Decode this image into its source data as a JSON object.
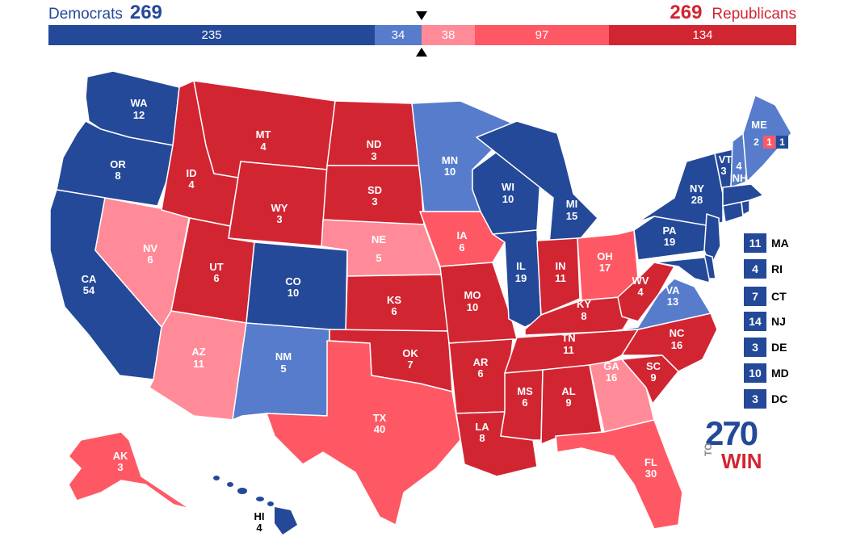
{
  "header": {
    "dem_name": "Democrats",
    "dem_total": "269",
    "rep_total": "269",
    "rep_name": "Republicans"
  },
  "bar": [
    {
      "value": "235",
      "color": "#244999"
    },
    {
      "value": "34",
      "color": "#577ccc"
    },
    {
      "value": "38",
      "color": "#ff8b98"
    },
    {
      "value": "97",
      "color": "#ff5865"
    },
    {
      "value": "134",
      "color": "#d22532"
    }
  ],
  "colors": {
    "safe_dem": "#244999",
    "likely_dem": "#577ccc",
    "tossup_lean_rep": "#ff8b98",
    "likely_rep": "#ff5865",
    "safe_rep": "#d22532"
  },
  "states": {
    "WA": {
      "abbr": "WA",
      "ev": "12"
    },
    "OR": {
      "abbr": "OR",
      "ev": "8"
    },
    "CA": {
      "abbr": "CA",
      "ev": "54"
    },
    "NV": {
      "abbr": "NV",
      "ev": "6"
    },
    "ID": {
      "abbr": "ID",
      "ev": "4"
    },
    "MT": {
      "abbr": "MT",
      "ev": "4"
    },
    "WY": {
      "abbr": "WY",
      "ev": "3"
    },
    "UT": {
      "abbr": "UT",
      "ev": "6"
    },
    "AZ": {
      "abbr": "AZ",
      "ev": "11"
    },
    "CO": {
      "abbr": "CO",
      "ev": "10"
    },
    "NM": {
      "abbr": "NM",
      "ev": "5"
    },
    "ND": {
      "abbr": "ND",
      "ev": "3"
    },
    "SD": {
      "abbr": "SD",
      "ev": "3"
    },
    "NE": {
      "abbr": "NE",
      "ev": "5"
    },
    "KS": {
      "abbr": "KS",
      "ev": "6"
    },
    "OK": {
      "abbr": "OK",
      "ev": "7"
    },
    "TX": {
      "abbr": "TX",
      "ev": "40"
    },
    "MN": {
      "abbr": "MN",
      "ev": "10"
    },
    "IA": {
      "abbr": "IA",
      "ev": "6"
    },
    "MO": {
      "abbr": "MO",
      "ev": "10"
    },
    "AR": {
      "abbr": "AR",
      "ev": "6"
    },
    "LA": {
      "abbr": "LA",
      "ev": "8"
    },
    "WI": {
      "abbr": "WI",
      "ev": "10"
    },
    "IL": {
      "abbr": "IL",
      "ev": "19"
    },
    "MI": {
      "abbr": "MI",
      "ev": "15"
    },
    "IN": {
      "abbr": "IN",
      "ev": "11"
    },
    "OH": {
      "abbr": "OH",
      "ev": "17"
    },
    "KY": {
      "abbr": "KY",
      "ev": "8"
    },
    "TN": {
      "abbr": "TN",
      "ev": "11"
    },
    "MS": {
      "abbr": "MS",
      "ev": "6"
    },
    "AL": {
      "abbr": "AL",
      "ev": "9"
    },
    "GA": {
      "abbr": "GA",
      "ev": "16"
    },
    "FL": {
      "abbr": "FL",
      "ev": "30"
    },
    "SC": {
      "abbr": "SC",
      "ev": "9"
    },
    "NC": {
      "abbr": "NC",
      "ev": "16"
    },
    "VA": {
      "abbr": "VA",
      "ev": "13"
    },
    "WV": {
      "abbr": "WV",
      "ev": "4"
    },
    "PA": {
      "abbr": "PA",
      "ev": "19"
    },
    "NY": {
      "abbr": "NY",
      "ev": "28"
    },
    "VT": {
      "abbr": "VT",
      "ev": "3"
    },
    "NH": {
      "abbr": "NH",
      "ev": "4"
    },
    "ME": {
      "abbr": "ME",
      "ev_1": "2",
      "ev_2": "1",
      "ev_3": "1"
    },
    "AK": {
      "abbr": "AK",
      "ev": "3"
    },
    "HI": {
      "abbr": "HI",
      "ev": "4"
    }
  },
  "small_states": [
    {
      "ev": "11",
      "abbr": "MA"
    },
    {
      "ev": "4",
      "abbr": "RI"
    },
    {
      "ev": "7",
      "abbr": "CT"
    },
    {
      "ev": "14",
      "abbr": "NJ"
    },
    {
      "ev": "3",
      "abbr": "DE"
    },
    {
      "ev": "10",
      "abbr": "MD"
    },
    {
      "ev": "3",
      "abbr": "DC"
    }
  ],
  "logo": {
    "number": "270",
    "to": "TO",
    "win": "WIN"
  }
}
